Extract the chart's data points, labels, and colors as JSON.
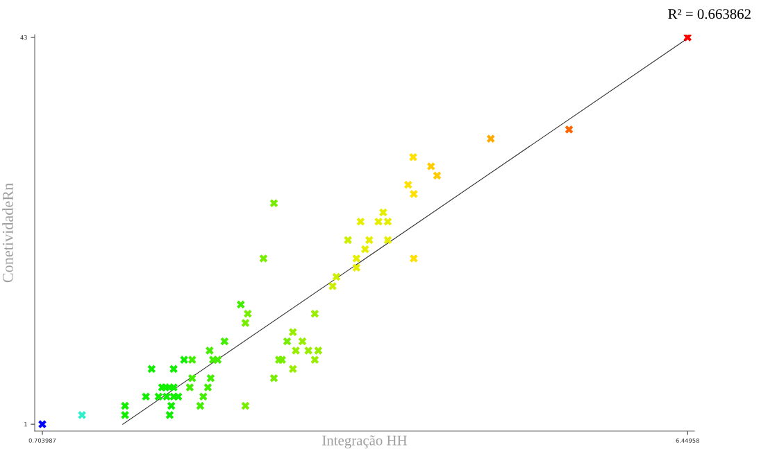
{
  "chart_data": {
    "type": "scatter",
    "xlabel": "Integração HH",
    "ylabel": "ConetividadeRn",
    "annotations": [
      "R² = 0.663862"
    ],
    "xlim": [
      0.636,
      6.51
    ],
    "ylim": [
      0.26,
      43.3
    ],
    "xticks": [
      0.703987,
      6.44958
    ],
    "yticks": [
      1,
      43
    ],
    "series": [
      {
        "marker": "cross",
        "x": [
          0.703987,
          1.057,
          1.44,
          1.838,
          1.44,
          1.852,
          2.11,
          2.512,
          1.626,
          1.739,
          1.811,
          1.873,
          1.914,
          2.137,
          1.77,
          1.799,
          1.836,
          1.873,
          2.017,
          2.178,
          2.038,
          2.203,
          2.766,
          1.677,
          1.873,
          2.935,
          1.966,
          2.038,
          2.224,
          2.265,
          2.811,
          2.838,
          3.13,
          2.193,
          2.961,
          3.073,
          3.161,
          2.326,
          2.884,
          3.02,
          2.935,
          2.512,
          2.533,
          3.13,
          2.471,
          3.289,
          3.322,
          3.501,
          2.673,
          3.501,
          4.011,
          3.578,
          3.425,
          3.615,
          3.78,
          3.538,
          3.697,
          3.78,
          3.739,
          2.766,
          4.011,
          3.961,
          4.219,
          4.165,
          4.006,
          4.697,
          5.394,
          6.44958
        ],
        "values": [
          1,
          2,
          2,
          2,
          3,
          3,
          3,
          3,
          4,
          4,
          4,
          4,
          4,
          4,
          5,
          5,
          5,
          5,
          5,
          5,
          6,
          6,
          6,
          7,
          7,
          7,
          8,
          8,
          8,
          8,
          8,
          8,
          8,
          9,
          9,
          9,
          9,
          10,
          10,
          10,
          11,
          12,
          13,
          13,
          14,
          16,
          17,
          18,
          19,
          19,
          19,
          20,
          21,
          21,
          21,
          23,
          23,
          23,
          24,
          25,
          26,
          27,
          28,
          29,
          30,
          32,
          33,
          43
        ],
        "colors": [
          "#0000ff",
          "#33eecc",
          "#11ee00",
          "#11ee00",
          "#11ee00",
          "#11ee00",
          "#44ee00",
          "#77ee00",
          "#11ee00",
          "#11ee00",
          "#11ee00",
          "#11ee00",
          "#11ee00",
          "#44ee00",
          "#11ee00",
          "#11ee00",
          "#11ee00",
          "#11ee00",
          "#44ee00",
          "#44ee00",
          "#44ee00",
          "#44ee00",
          "#77ee00",
          "#11ee00",
          "#11ee00",
          "#99ee00",
          "#11ee00",
          "#44ee00",
          "#44ee00",
          "#44ee00",
          "#77ee00",
          "#77ee00",
          "#99ee00",
          "#44ee00",
          "#99ee00",
          "#99ee00",
          "#99ee00",
          "#44ee00",
          "#77ee00",
          "#99ee00",
          "#99ee00",
          "#77ee00",
          "#77ee00",
          "#99ee00",
          "#44ee00",
          "#ccee00",
          "#ccee00",
          "#e6ee00",
          "#77ee00",
          "#e6ee00",
          "#ffe000",
          "#e6ee00",
          "#ccee00",
          "#e6ee00",
          "#e6ee00",
          "#e6ee00",
          "#e6ee00",
          "#e6ee00",
          "#e6ee00",
          "#77ee00",
          "#ffe000",
          "#ffe000",
          "#ffcc00",
          "#ffcc00",
          "#ffe000",
          "#ffaa00",
          "#ff6600",
          "#ff0000"
        ]
      },
      {
        "type": "line",
        "x": [
          1.42,
          6.45
        ],
        "values": [
          1,
          42.9
        ],
        "color": "#333333"
      }
    ]
  }
}
